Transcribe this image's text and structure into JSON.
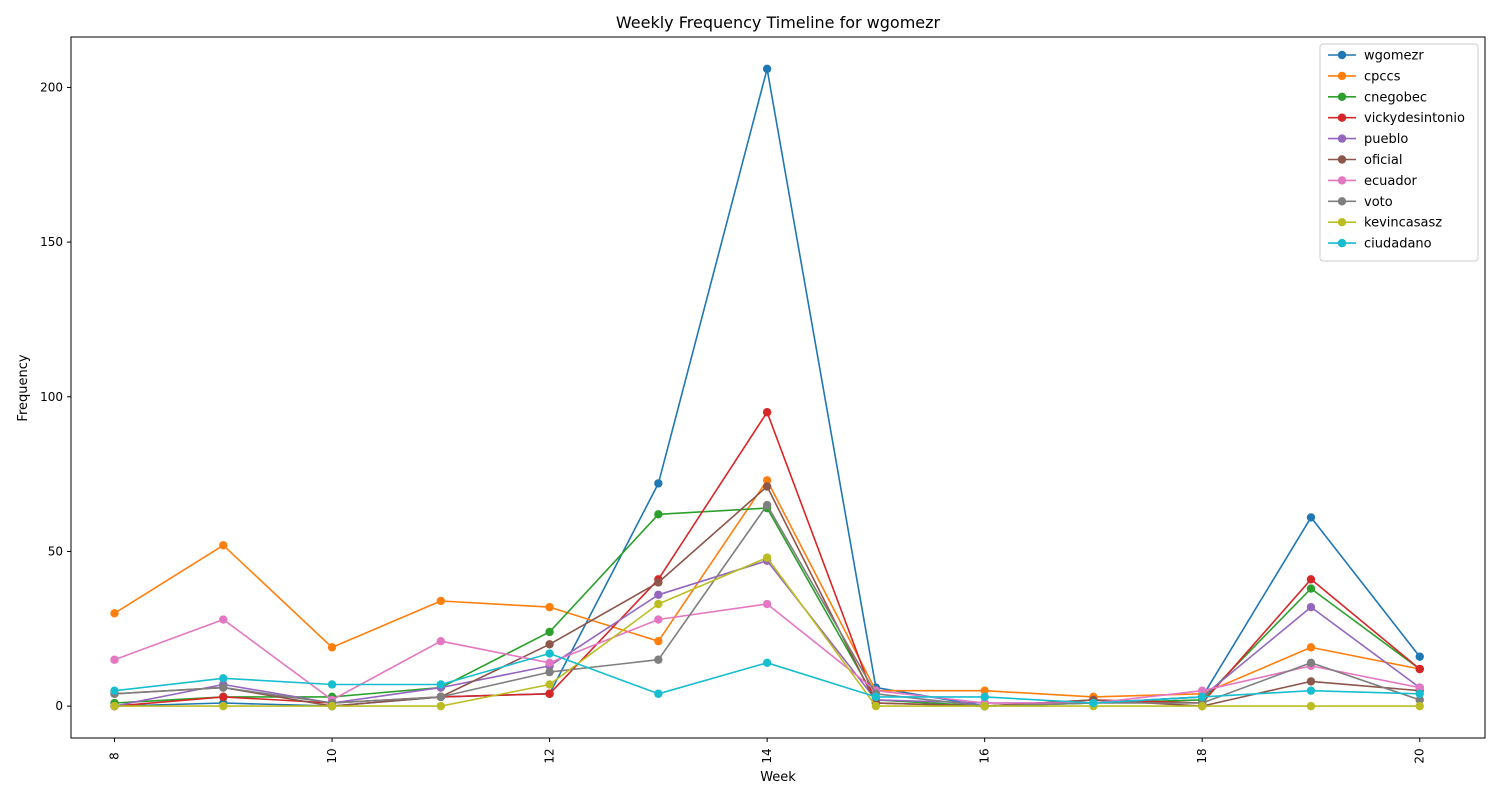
{
  "chart_data": {
    "type": "line",
    "title": "Weekly Frequency Timeline for wgomezr",
    "xlabel": "Week",
    "ylabel": "Frequency",
    "x": [
      8,
      9,
      10,
      11,
      12,
      13,
      14,
      15,
      16,
      17,
      18,
      19,
      20
    ],
    "xticks": [
      8,
      10,
      12,
      14,
      16,
      18,
      20
    ],
    "yticks": [
      0,
      50,
      100,
      150,
      200
    ],
    "xlim": [
      7.6,
      20.6
    ],
    "ylim": [
      -10.3,
      216.3
    ],
    "grid": false,
    "legend_position": "top-right",
    "series": [
      {
        "name": "wgomezr",
        "color": "#1f77b4",
        "values": [
          0,
          1,
          0,
          3,
          4,
          72,
          206,
          6,
          0,
          1,
          3,
          61,
          16
        ]
      },
      {
        "name": "cpccs",
        "color": "#ff7f0e",
        "values": [
          30,
          52,
          19,
          34,
          32,
          21,
          73,
          5,
          5,
          3,
          4,
          19,
          12
        ]
      },
      {
        "name": "cnegobec",
        "color": "#2ca02c",
        "values": [
          1,
          3,
          3,
          6,
          24,
          62,
          64,
          2,
          0,
          1,
          2,
          38,
          12
        ]
      },
      {
        "name": "vickydesintonio",
        "color": "#d62728",
        "values": [
          0,
          3,
          1,
          3,
          4,
          41,
          95,
          1,
          0,
          2,
          1,
          41,
          12
        ]
      },
      {
        "name": "pueblo",
        "color": "#9467bd",
        "values": [
          0,
          7,
          1,
          6,
          13,
          36,
          47,
          2,
          1,
          1,
          3,
          32,
          6
        ]
      },
      {
        "name": "oficial",
        "color": "#8c564b",
        "values": [
          4,
          6,
          0,
          3,
          20,
          40,
          71,
          1,
          0,
          2,
          0,
          8,
          5
        ]
      },
      {
        "name": "ecuador",
        "color": "#e377c2",
        "values": [
          15,
          28,
          2,
          21,
          14,
          28,
          33,
          5,
          1,
          1,
          5,
          13,
          6
        ]
      },
      {
        "name": "voto",
        "color": "#7f7f7f",
        "values": [
          4,
          6,
          1,
          3,
          11,
          15,
          65,
          4,
          0,
          1,
          1,
          14,
          2
        ]
      },
      {
        "name": "kevincasasz",
        "color": "#bcbd22",
        "values": [
          0,
          0,
          0,
          0,
          7,
          33,
          48,
          0,
          0,
          0,
          0,
          0,
          0
        ]
      },
      {
        "name": "ciudadano",
        "color": "#17becf",
        "values": [
          5,
          9,
          7,
          7,
          17,
          4,
          14,
          3,
          3,
          1,
          3,
          5,
          4
        ]
      }
    ]
  }
}
